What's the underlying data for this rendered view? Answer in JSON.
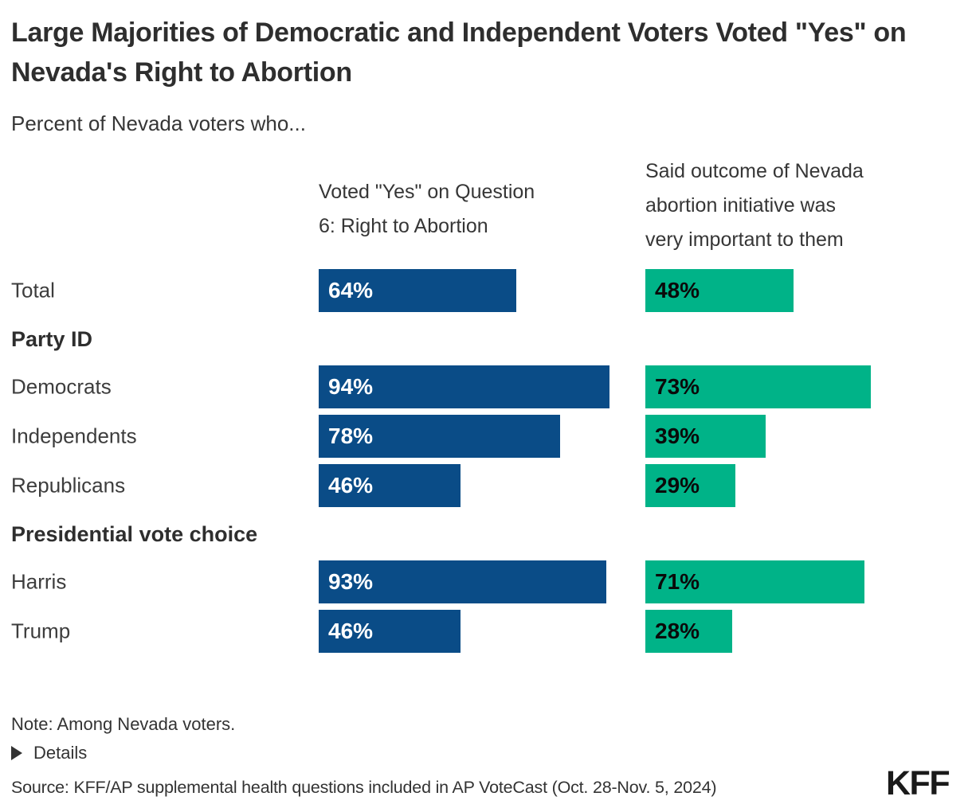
{
  "title": "Large Majorities of Democratic and Independent Voters Voted \"Yes\" on Nevada's Right to Abortion",
  "subtitle": "Percent of Nevada voters who...",
  "columns": [
    {
      "label": "Voted \"Yes\" on Question 6: Right to Abortion",
      "bar_color": "#0A4C87",
      "value_text_color": "#FFFFFF"
    },
    {
      "label": "Said outcome of Nevada abortion initiative was very important to them",
      "bar_color": "#00B388",
      "value_text_color": "#0A0A0A"
    }
  ],
  "chart_data": {
    "type": "bar",
    "orientation": "horizontal",
    "unit": "%",
    "xlim": [
      0,
      100
    ],
    "categories": [
      "Total",
      "Democrats",
      "Independents",
      "Republicans",
      "Harris",
      "Trump"
    ],
    "series": [
      {
        "name": "Voted \"Yes\" on Question 6: Right to Abortion",
        "values": [
          64,
          94,
          78,
          46,
          93,
          46
        ]
      },
      {
        "name": "Said outcome of Nevada abortion initiative was very important to them",
        "values": [
          48,
          73,
          39,
          29,
          71,
          28
        ]
      }
    ],
    "groups": [
      {
        "header": null,
        "rows": [
          {
            "label": "Total",
            "values": [
              64,
              48
            ]
          }
        ]
      },
      {
        "header": "Party ID",
        "rows": [
          {
            "label": "Democrats",
            "values": [
              94,
              73
            ]
          },
          {
            "label": "Independents",
            "values": [
              78,
              39
            ]
          },
          {
            "label": "Republicans",
            "values": [
              46,
              29
            ]
          }
        ]
      },
      {
        "header": "Presidential vote choice",
        "rows": [
          {
            "label": "Harris",
            "values": [
              93,
              71
            ]
          },
          {
            "label": "Trump",
            "values": [
              46,
              28
            ]
          }
        ]
      }
    ]
  },
  "footer": {
    "note": "Note: Among Nevada voters.",
    "details_label": "Details",
    "source": "Source: KFF/AP supplemental health questions included in AP VoteCast (Oct. 28-Nov. 5, 2024)",
    "logo_text": "KFF"
  }
}
